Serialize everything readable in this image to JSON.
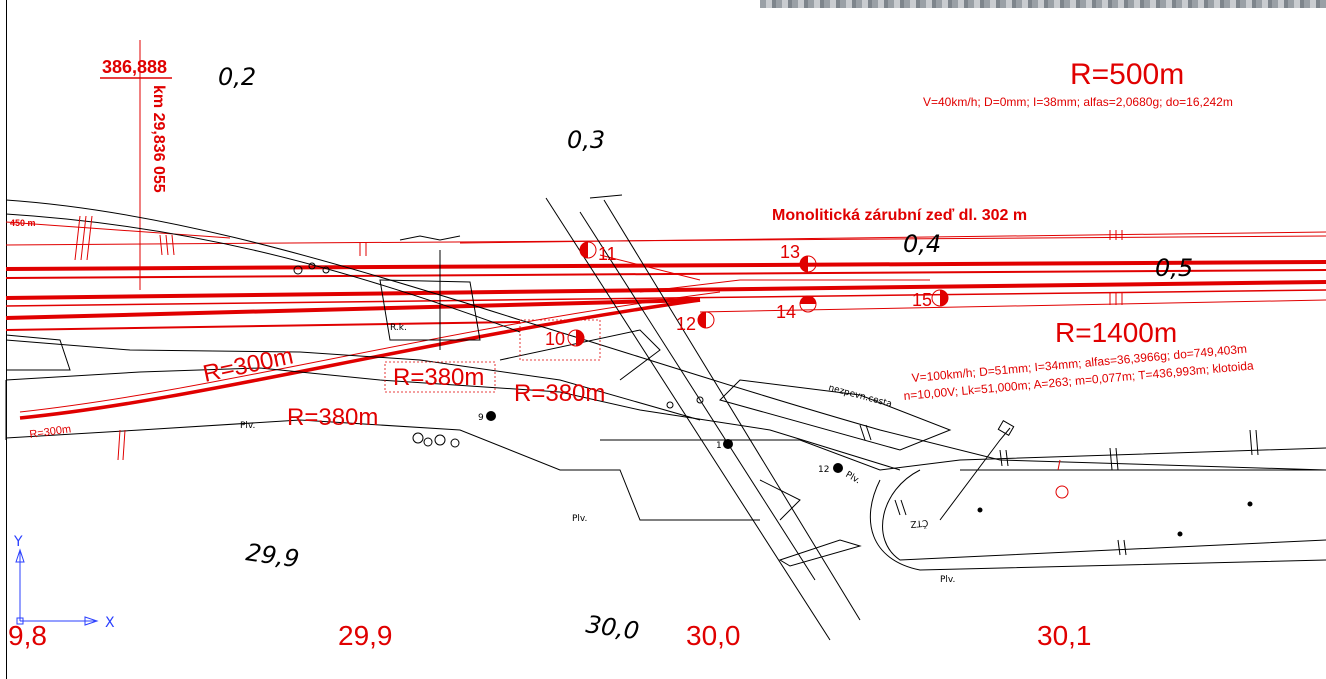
{
  "header_ref": {
    "chainage_value": "386,888",
    "km_label": "km 29,836 055"
  },
  "km_markers_top": [
    "0,2",
    "0,3",
    "0,4",
    "0,5"
  ],
  "curves": {
    "r500": {
      "radius": "R=500m",
      "params": "V=40km/h; D=0mm; I=38mm; alfas=2,0680g; do=16,242m"
    },
    "r1400": {
      "radius": "R=1400m",
      "params_1": "V=100km/h; D=51mm; I=34mm; alfas=36,3966g; do=749,403m",
      "params_2": "n=10,00V; Lk=51,000m; A=263; m=0,077m; T=436,993m; klotoida"
    },
    "r300": "R=300m",
    "r380_a": "R=380m",
    "r380_b": "R=380m",
    "r380_c": "R=380m",
    "r300_small": "R=300m",
    "r450_small": "450 m"
  },
  "wall_label": "Monolitická zárubní zeď  dl. 302 m",
  "switches": [
    "11",
    "13",
    "14",
    "15",
    "12",
    "10",
    "9",
    "1",
    "12"
  ],
  "labels_black": {
    "road": "nezpevn.cesta",
    "plv_1": "Plv.",
    "plv_2": "Plv.",
    "plv_3": "Plv.",
    "plv_4": "Plv.",
    "rk": "R.k.",
    "ct": "ČTZ"
  },
  "km_markers_bottom_red": [
    "9,8",
    "29,9",
    "30,0",
    "30,1"
  ],
  "km_markers_bottom_black": [
    "29,9",
    "30,0"
  ],
  "axis": {
    "x_label": "X",
    "y_label": "Y"
  },
  "colors": {
    "red": "#e00000",
    "black": "#000000",
    "blue": "#2a3fff"
  }
}
